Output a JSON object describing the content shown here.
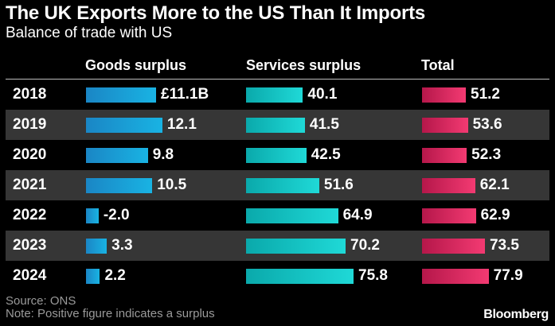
{
  "chart_data": {
    "type": "table",
    "title": "The UK Exports More to the US Than It Imports",
    "subtitle": "Balance of trade with US",
    "headers": {
      "goods": "Goods surplus",
      "services": "Services surplus",
      "total": "Total"
    },
    "rows": [
      {
        "year": "2018",
        "goods": 11.1,
        "goods_label": "£11.1B",
        "services": 40.1,
        "services_label": "40.1",
        "total": 51.2,
        "total_label": "51.2"
      },
      {
        "year": "2019",
        "goods": 12.1,
        "goods_label": "12.1",
        "services": 41.5,
        "services_label": "41.5",
        "total": 53.6,
        "total_label": "53.6"
      },
      {
        "year": "2020",
        "goods": 9.8,
        "goods_label": "9.8",
        "services": 42.5,
        "services_label": "42.5",
        "total": 52.3,
        "total_label": "52.3"
      },
      {
        "year": "2021",
        "goods": 10.5,
        "goods_label": "10.5",
        "services": 51.6,
        "services_label": "51.6",
        "total": 62.1,
        "total_label": "62.1"
      },
      {
        "year": "2022",
        "goods": -2.0,
        "goods_label": "-2.0",
        "services": 64.9,
        "services_label": "64.9",
        "total": 62.9,
        "total_label": "62.9"
      },
      {
        "year": "2023",
        "goods": 3.3,
        "goods_label": "3.3",
        "services": 70.2,
        "services_label": "70.2",
        "total": 73.5,
        "total_label": "73.5"
      },
      {
        "year": "2024",
        "goods": 2.2,
        "goods_label": "2.2",
        "services": 75.8,
        "services_label": "75.8",
        "total": 77.9,
        "total_label": "77.9"
      }
    ],
    "units": "£ billions"
  },
  "footer": {
    "source": "Source: ONS",
    "note": "Note: Positive figure indicates a surplus"
  },
  "brand": "Bloomberg",
  "colors": {
    "goods": "#19b3e3",
    "services": "#1fd9d7",
    "total": "#f33a72",
    "background": "#000000",
    "shaded_row": "#363636"
  }
}
